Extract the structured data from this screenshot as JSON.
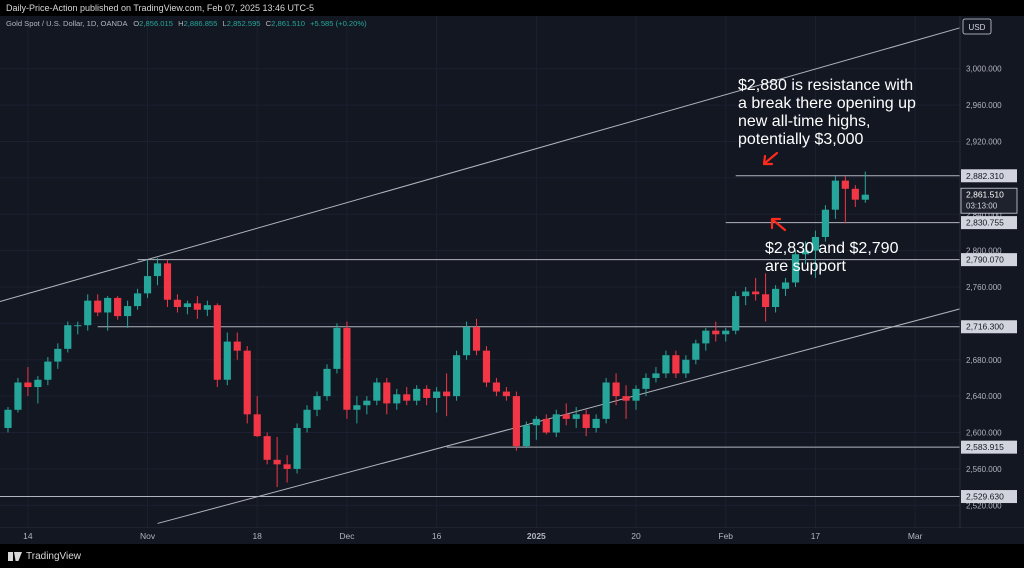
{
  "header": {
    "published": "Daily-Price-Action published on TradingView.com, Feb 07, 2025 13:46 UTC-5"
  },
  "symbol_bar": {
    "name": "Gold Spot / U.S. Dollar, 1D, OANDA",
    "o_label": "O",
    "o_value": "2,856.015",
    "h_label": "H",
    "h_value": "2,886.855",
    "l_label": "L",
    "l_value": "2,852.595",
    "c_label": "C",
    "c_value": "2,861.510",
    "change": "+5.585 (+0.20%)"
  },
  "currency": "USD",
  "countdown": "03:13:00",
  "footer": {
    "brand": "TradingView"
  },
  "colors": {
    "up": "#26a69a",
    "down": "#f23645",
    "arrow": "#ff2a1a",
    "background": "#131722",
    "line": "#b2b5be"
  },
  "chart_data": {
    "type": "candlestick",
    "y_ticks": [
      "3,000.000",
      "2,960.000",
      "2,920.000",
      "2,880.000",
      "2,840.000",
      "2,800.000",
      "2,760.000",
      "2,720.000",
      "2,680.000",
      "2,640.000",
      "2,600.000",
      "2,560.000",
      "2,520.000"
    ],
    "ylim": [
      2495,
      3058
    ],
    "x_ticks": [
      {
        "label": "14",
        "index": 2
      },
      {
        "label": "Nov",
        "index": 14
      },
      {
        "label": "18",
        "index": 25
      },
      {
        "label": "Dec",
        "index": 34
      },
      {
        "label": "16",
        "index": 43
      },
      {
        "label": "2025",
        "index": 53
      },
      {
        "label": "20",
        "index": 63
      },
      {
        "label": "Feb",
        "index": 72
      },
      {
        "label": "17",
        "index": 81
      },
      {
        "label": "Mar",
        "index": 91
      }
    ],
    "x_range": [
      -0.8,
      95.5
    ],
    "horizontal_levels": [
      {
        "label": "2,882.310",
        "value": 2882.3,
        "start_index": 73
      },
      {
        "label": "2,830.755",
        "value": 2830.8,
        "start_index": 72
      },
      {
        "label": "2,790.070",
        "value": 2790.1,
        "start_index": 13
      },
      {
        "label": "2,716.300",
        "value": 2716.3,
        "start_index": 9
      },
      {
        "label": "2,583.915",
        "value": 2583.9,
        "start_index": 44
      },
      {
        "label": "2,529.630",
        "value": 2529.6,
        "start_index": -1
      }
    ],
    "price_label": "2,861.510",
    "last_price": 2861.5,
    "trend_lines": [
      {
        "name": "channel-upper",
        "x1": -0.8,
        "y1": 2744,
        "x2": 95.5,
        "y2": 3045
      },
      {
        "name": "channel-lower",
        "x1": 15,
        "y1": 2500,
        "x2": 95.5,
        "y2": 2736
      }
    ],
    "annotations": [
      {
        "lines": [
          "$2,880 is resistance with",
          "a break there opening up",
          "new all-time highs,",
          "potentially $3,000"
        ]
      },
      {
        "lines": [
          "$2,830 and $2,790",
          "are support"
        ]
      }
    ],
    "candles": [
      {
        "o": 2605,
        "h": 2628,
        "l": 2600,
        "c": 2625
      },
      {
        "o": 2625,
        "h": 2660,
        "l": 2622,
        "c": 2655
      },
      {
        "o": 2655,
        "h": 2672,
        "l": 2640,
        "c": 2650
      },
      {
        "o": 2650,
        "h": 2662,
        "l": 2632,
        "c": 2658
      },
      {
        "o": 2658,
        "h": 2683,
        "l": 2652,
        "c": 2678
      },
      {
        "o": 2678,
        "h": 2698,
        "l": 2670,
        "c": 2692
      },
      {
        "o": 2692,
        "h": 2722,
        "l": 2688,
        "c": 2718
      },
      {
        "o": 2718,
        "h": 2722,
        "l": 2708,
        "c": 2718
      },
      {
        "o": 2718,
        "h": 2752,
        "l": 2712,
        "c": 2745
      },
      {
        "o": 2745,
        "h": 2752,
        "l": 2728,
        "c": 2732
      },
      {
        "o": 2732,
        "h": 2750,
        "l": 2712,
        "c": 2748
      },
      {
        "o": 2748,
        "h": 2750,
        "l": 2724,
        "c": 2728
      },
      {
        "o": 2728,
        "h": 2745,
        "l": 2715,
        "c": 2739
      },
      {
        "o": 2739,
        "h": 2758,
        "l": 2735,
        "c": 2753
      },
      {
        "o": 2753,
        "h": 2790,
        "l": 2748,
        "c": 2772
      },
      {
        "o": 2772,
        "h": 2792,
        "l": 2762,
        "c": 2786
      },
      {
        "o": 2786,
        "h": 2790,
        "l": 2738,
        "c": 2746
      },
      {
        "o": 2746,
        "h": 2752,
        "l": 2732,
        "c": 2738
      },
      {
        "o": 2738,
        "h": 2745,
        "l": 2730,
        "c": 2742
      },
      {
        "o": 2742,
        "h": 2750,
        "l": 2725,
        "c": 2735
      },
      {
        "o": 2735,
        "h": 2745,
        "l": 2728,
        "c": 2740
      },
      {
        "o": 2740,
        "h": 2742,
        "l": 2650,
        "c": 2658
      },
      {
        "o": 2658,
        "h": 2710,
        "l": 2652,
        "c": 2700
      },
      {
        "o": 2700,
        "h": 2710,
        "l": 2680,
        "c": 2690
      },
      {
        "o": 2690,
        "h": 2695,
        "l": 2610,
        "c": 2620
      },
      {
        "o": 2620,
        "h": 2640,
        "l": 2595,
        "c": 2596
      },
      {
        "o": 2596,
        "h": 2600,
        "l": 2565,
        "c": 2570
      },
      {
        "o": 2570,
        "h": 2595,
        "l": 2540,
        "c": 2565
      },
      {
        "o": 2565,
        "h": 2575,
        "l": 2545,
        "c": 2560
      },
      {
        "o": 2560,
        "h": 2610,
        "l": 2555,
        "c": 2605
      },
      {
        "o": 2605,
        "h": 2630,
        "l": 2600,
        "c": 2625
      },
      {
        "o": 2625,
        "h": 2645,
        "l": 2618,
        "c": 2640
      },
      {
        "o": 2640,
        "h": 2675,
        "l": 2635,
        "c": 2670
      },
      {
        "o": 2670,
        "h": 2720,
        "l": 2665,
        "c": 2715
      },
      {
        "o": 2715,
        "h": 2722,
        "l": 2615,
        "c": 2625
      },
      {
        "o": 2625,
        "h": 2640,
        "l": 2610,
        "c": 2630
      },
      {
        "o": 2630,
        "h": 2640,
        "l": 2620,
        "c": 2635
      },
      {
        "o": 2635,
        "h": 2660,
        "l": 2630,
        "c": 2655
      },
      {
        "o": 2655,
        "h": 2660,
        "l": 2620,
        "c": 2632
      },
      {
        "o": 2632,
        "h": 2648,
        "l": 2625,
        "c": 2642
      },
      {
        "o": 2642,
        "h": 2650,
        "l": 2630,
        "c": 2635
      },
      {
        "o": 2635,
        "h": 2652,
        "l": 2630,
        "c": 2648
      },
      {
        "o": 2648,
        "h": 2652,
        "l": 2630,
        "c": 2638
      },
      {
        "o": 2638,
        "h": 2650,
        "l": 2622,
        "c": 2645
      },
      {
        "o": 2645,
        "h": 2665,
        "l": 2618,
        "c": 2640
      },
      {
        "o": 2640,
        "h": 2690,
        "l": 2635,
        "c": 2685
      },
      {
        "o": 2685,
        "h": 2722,
        "l": 2680,
        "c": 2716
      },
      {
        "o": 2716,
        "h": 2725,
        "l": 2685,
        "c": 2690
      },
      {
        "o": 2690,
        "h": 2695,
        "l": 2650,
        "c": 2655
      },
      {
        "o": 2655,
        "h": 2660,
        "l": 2640,
        "c": 2645
      },
      {
        "o": 2645,
        "h": 2650,
        "l": 2635,
        "c": 2640
      },
      {
        "o": 2640,
        "h": 2645,
        "l": 2580,
        "c": 2585
      },
      {
        "o": 2585,
        "h": 2612,
        "l": 2583,
        "c": 2608
      },
      {
        "o": 2608,
        "h": 2618,
        "l": 2592,
        "c": 2615
      },
      {
        "o": 2615,
        "h": 2620,
        "l": 2598,
        "c": 2600
      },
      {
        "o": 2600,
        "h": 2625,
        "l": 2595,
        "c": 2620
      },
      {
        "o": 2620,
        "h": 2632,
        "l": 2608,
        "c": 2615
      },
      {
        "o": 2615,
        "h": 2628,
        "l": 2605,
        "c": 2620
      },
      {
        "o": 2620,
        "h": 2625,
        "l": 2596,
        "c": 2605
      },
      {
        "o": 2605,
        "h": 2620,
        "l": 2600,
        "c": 2615
      },
      {
        "o": 2615,
        "h": 2660,
        "l": 2610,
        "c": 2655
      },
      {
        "o": 2655,
        "h": 2665,
        "l": 2630,
        "c": 2640
      },
      {
        "o": 2640,
        "h": 2652,
        "l": 2615,
        "c": 2635
      },
      {
        "o": 2635,
        "h": 2652,
        "l": 2625,
        "c": 2648
      },
      {
        "o": 2648,
        "h": 2665,
        "l": 2640,
        "c": 2660
      },
      {
        "o": 2660,
        "h": 2672,
        "l": 2655,
        "c": 2665
      },
      {
        "o": 2665,
        "h": 2690,
        "l": 2660,
        "c": 2685
      },
      {
        "o": 2685,
        "h": 2690,
        "l": 2660,
        "c": 2665
      },
      {
        "o": 2665,
        "h": 2685,
        "l": 2660,
        "c": 2680
      },
      {
        "o": 2680,
        "h": 2702,
        "l": 2675,
        "c": 2698
      },
      {
        "o": 2698,
        "h": 2715,
        "l": 2690,
        "c": 2712
      },
      {
        "o": 2712,
        "h": 2722,
        "l": 2700,
        "c": 2708
      },
      {
        "o": 2708,
        "h": 2715,
        "l": 2700,
        "c": 2712
      },
      {
        "o": 2712,
        "h": 2755,
        "l": 2708,
        "c": 2750
      },
      {
        "o": 2750,
        "h": 2760,
        "l": 2740,
        "c": 2755
      },
      {
        "o": 2755,
        "h": 2770,
        "l": 2745,
        "c": 2752
      },
      {
        "o": 2752,
        "h": 2775,
        "l": 2722,
        "c": 2738
      },
      {
        "o": 2738,
        "h": 2762,
        "l": 2732,
        "c": 2758
      },
      {
        "o": 2758,
        "h": 2770,
        "l": 2750,
        "c": 2765
      },
      {
        "o": 2765,
        "h": 2800,
        "l": 2760,
        "c": 2796
      },
      {
        "o": 2796,
        "h": 2810,
        "l": 2785,
        "c": 2800
      },
      {
        "o": 2800,
        "h": 2822,
        "l": 2770,
        "c": 2815
      },
      {
        "o": 2815,
        "h": 2850,
        "l": 2810,
        "c": 2845
      },
      {
        "o": 2845,
        "h": 2882,
        "l": 2835,
        "c": 2877
      },
      {
        "o": 2877,
        "h": 2882,
        "l": 2830,
        "c": 2868
      },
      {
        "o": 2868,
        "h": 2872,
        "l": 2848,
        "c": 2856
      },
      {
        "o": 2856,
        "h": 2886.9,
        "l": 2852.6,
        "c": 2861.5
      }
    ]
  }
}
